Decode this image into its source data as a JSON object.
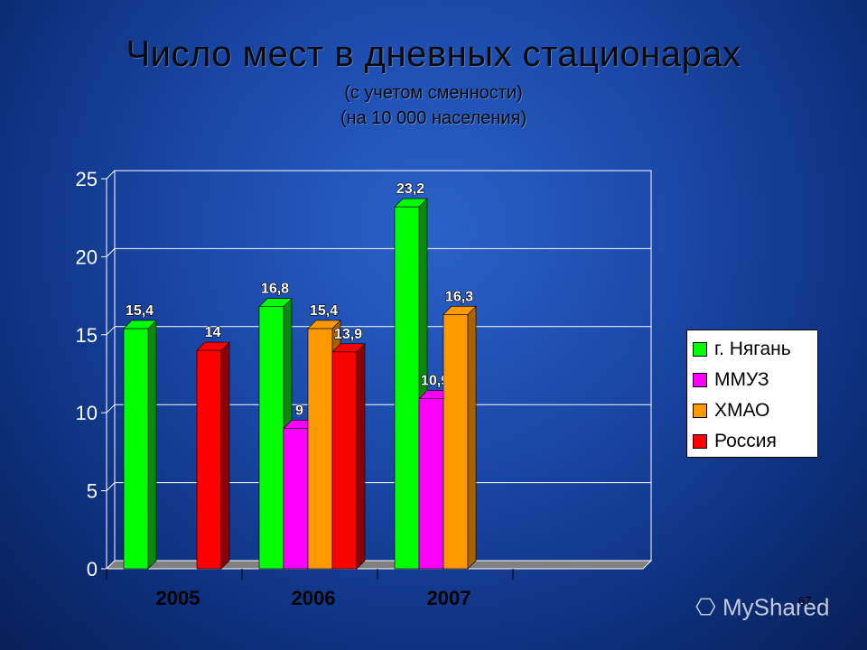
{
  "title": "Число мест в дневных стационарах",
  "subtitle1": "(с учетом сменности)",
  "subtitle2": "(на 10 000 населения)",
  "page_number": "67",
  "logo_text": "MyShared",
  "chart_data": {
    "type": "bar",
    "categories": [
      "2005",
      "2006",
      "2007"
    ],
    "ylim": [
      0,
      25
    ],
    "yticks": [
      "0",
      "5",
      "10",
      "15",
      "20",
      "25"
    ],
    "grid": true,
    "legend_position": "right",
    "series": [
      {
        "name": "г. Нягань",
        "color": "#00ff00",
        "side": "#0a8a0a",
        "values": [
          15.4,
          16.8,
          23.2
        ],
        "labels": [
          "15,4",
          "16,8",
          "23,2"
        ]
      },
      {
        "name": "ММУЗ",
        "color": "#ff00ff",
        "side": "#990099",
        "values": [
          null,
          9,
          10.9
        ],
        "labels": [
          "",
          "9",
          "10,9"
        ]
      },
      {
        "name": "ХМАО",
        "color": "#ff9900",
        "side": "#a86200",
        "values": [
          null,
          15.4,
          16.3
        ],
        "labels": [
          "",
          "15,4",
          "16,3"
        ]
      },
      {
        "name": "Россия",
        "color": "#ff0000",
        "side": "#8a0000",
        "values": [
          14,
          13.9,
          null
        ],
        "labels": [
          "14",
          "13,9",
          ""
        ]
      }
    ]
  }
}
